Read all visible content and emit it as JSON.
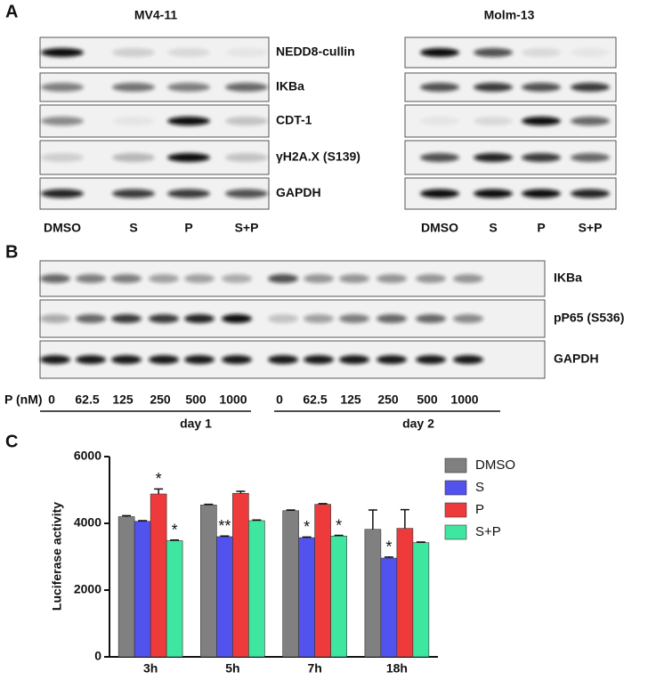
{
  "panel_a": {
    "label": "A",
    "cell_lines": [
      "MV4-11",
      "Molm-13"
    ],
    "proteins": [
      "NEDD8-cullin",
      "IKBa",
      "CDT-1",
      "γH2A.X (S139)",
      "GAPDH"
    ],
    "lanes": [
      "DMSO",
      "S",
      "P",
      "S+P"
    ]
  },
  "panel_b": {
    "label": "B",
    "proteins": [
      "IKBa",
      "pP65 (S536)",
      "GAPDH"
    ],
    "dose_label": "P (nM)",
    "doses": [
      0,
      62.5,
      125,
      250,
      500,
      1000,
      0,
      62.5,
      125,
      250,
      500,
      1000
    ],
    "days": [
      "day 1",
      "day 2"
    ]
  },
  "panel_c": {
    "label": "C"
  },
  "chart_data": {
    "type": "bar",
    "y_label": "Luciferase activity",
    "categories": [
      "3h",
      "5h",
      "7h",
      "18h"
    ],
    "ylim": [
      0,
      6000
    ],
    "yticks": [
      0,
      2000,
      4000,
      6000
    ],
    "legend": "right",
    "series": [
      {
        "name": "DMSO",
        "color": "#808080",
        "values": [
          4200,
          4550,
          4380,
          3820
        ],
        "errors": [
          30,
          20,
          20,
          580
        ],
        "annotations": [
          null,
          null,
          null,
          null
        ]
      },
      {
        "name": "S",
        "color": "#5252ee",
        "values": [
          4060,
          3600,
          3570,
          2960
        ],
        "errors": [
          20,
          20,
          20,
          30
        ],
        "annotations": [
          null,
          "**",
          "*",
          "*"
        ]
      },
      {
        "name": "P",
        "color": "#ee3a3a",
        "values": [
          4880,
          4900,
          4570,
          3850
        ],
        "errors": [
          150,
          60,
          20,
          560
        ],
        "annotations": [
          "*",
          null,
          null,
          null
        ]
      },
      {
        "name": "S+P",
        "color": "#3ee6a0",
        "values": [
          3480,
          4080,
          3620,
          3420
        ],
        "errors": [
          20,
          20,
          20,
          20
        ],
        "annotations": [
          "*",
          null,
          "*",
          null
        ]
      }
    ]
  }
}
